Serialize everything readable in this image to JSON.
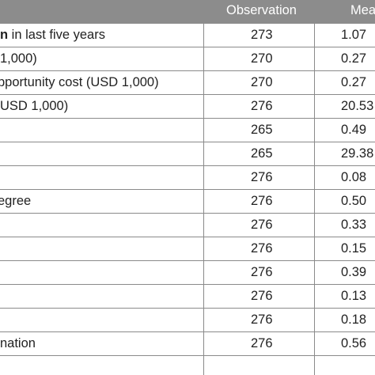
{
  "table": {
    "headers": {
      "observation": "Observation",
      "mean": "Mea"
    },
    "rows": [
      {
        "var_bold": "n",
        "var": " in last five years",
        "obs": "273",
        "mean": "1.07"
      },
      {
        "var_bold": "",
        "var": "1,000)",
        "obs": "270",
        "mean": "0.27"
      },
      {
        "var_bold": "",
        "var": "pportunity cost (USD 1,000)",
        "obs": "270",
        "mean": "0.27"
      },
      {
        "var_bold": "",
        "var": "USD 1,000)",
        "obs": "276",
        "mean": "20.53"
      },
      {
        "var_bold": "",
        "var": "",
        "obs": "265",
        "mean": "0.49"
      },
      {
        "var_bold": "",
        "var": "",
        "obs": "265",
        "mean": "29.38"
      },
      {
        "var_bold": "",
        "var": "",
        "obs": "276",
        "mean": "0.08"
      },
      {
        "var_bold": "",
        "var": " egree",
        "obs": "276",
        "mean": "0.50"
      },
      {
        "var_bold": "",
        "var": "",
        "obs": "276",
        "mean": "0.33"
      },
      {
        "var_bold": "",
        "var": "",
        "obs": "276",
        "mean": "0.15"
      },
      {
        "var_bold": "",
        "var": "",
        "obs": "276",
        "mean": "0.39"
      },
      {
        "var_bold": "",
        "var": "",
        "obs": "276",
        "mean": "0.13"
      },
      {
        "var_bold": "",
        "var": "",
        "obs": "276",
        "mean": "0.18"
      },
      {
        "var_bold": "",
        "var": "nation",
        "obs": "276",
        "mean": "0.56"
      }
    ]
  }
}
